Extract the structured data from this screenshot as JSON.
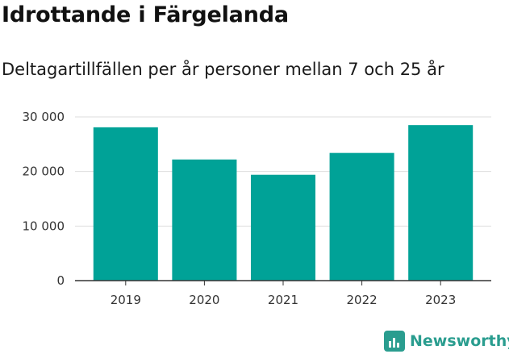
{
  "colors": {
    "bar": "#00a297",
    "grid": "#dddddd",
    "axis": "#333333",
    "brand": "#2a9d8f"
  },
  "brand": {
    "name": "Newsworthy",
    "icon": "bar-chart-icon"
  },
  "chart_data": {
    "type": "bar",
    "title": "Idrottande i Färgelanda",
    "subtitle": "Deltagartillfällen per år personer mellan 7 och 25 år",
    "xlabel": "",
    "ylabel": "",
    "categories": [
      "2019",
      "2020",
      "2021",
      "2022",
      "2023"
    ],
    "values": [
      28100,
      22200,
      19400,
      23400,
      28500
    ],
    "ylim": [
      0,
      30000
    ],
    "yticks": [
      0,
      10000,
      20000,
      30000
    ],
    "ytick_labels": [
      "0",
      "10 000",
      "20 000",
      "30 000"
    ],
    "grid": true,
    "legend": "none"
  }
}
